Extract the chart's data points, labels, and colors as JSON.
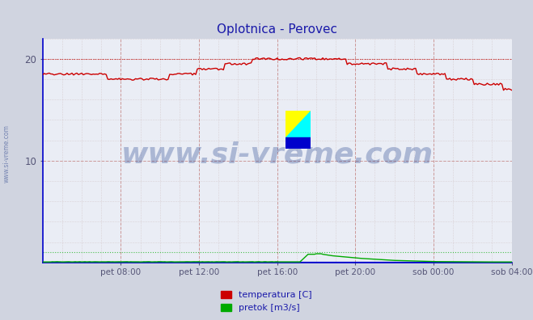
{
  "title": "Oplotnica - Perovec",
  "title_color": "#1a1aaa",
  "bg_color": "#d0d4e0",
  "plot_bg_color": "#eaedf5",
  "ylabel_left": "",
  "xlabel": "",
  "yticks": [
    10,
    20
  ],
  "ylim": [
    0,
    22
  ],
  "xlim": [
    0,
    288
  ],
  "xticklabels": [
    "pet 08:00",
    "pet 12:00",
    "pet 16:00",
    "pet 20:00",
    "sob 00:00",
    "sob 04:00"
  ],
  "xtick_positions": [
    48,
    96,
    144,
    192,
    240,
    288
  ],
  "temp_color": "#cc0000",
  "flow_color": "#00aa00",
  "height_color": "#0000cc",
  "watermark_text": "www.si-vreme.com",
  "watermark_color": "#1a3a8a",
  "watermark_alpha": 0.3,
  "legend_temp_label": "temperatura [C]",
  "legend_flow_label": "pretok [m3/s]",
  "axis_color": "#0000cc",
  "tick_color": "#555577",
  "sidebar_text": "www.si-vreme.com",
  "sidebar_color": "#6677aa",
  "figsize": [
    6.59,
    3.96
  ],
  "dpi": 100
}
